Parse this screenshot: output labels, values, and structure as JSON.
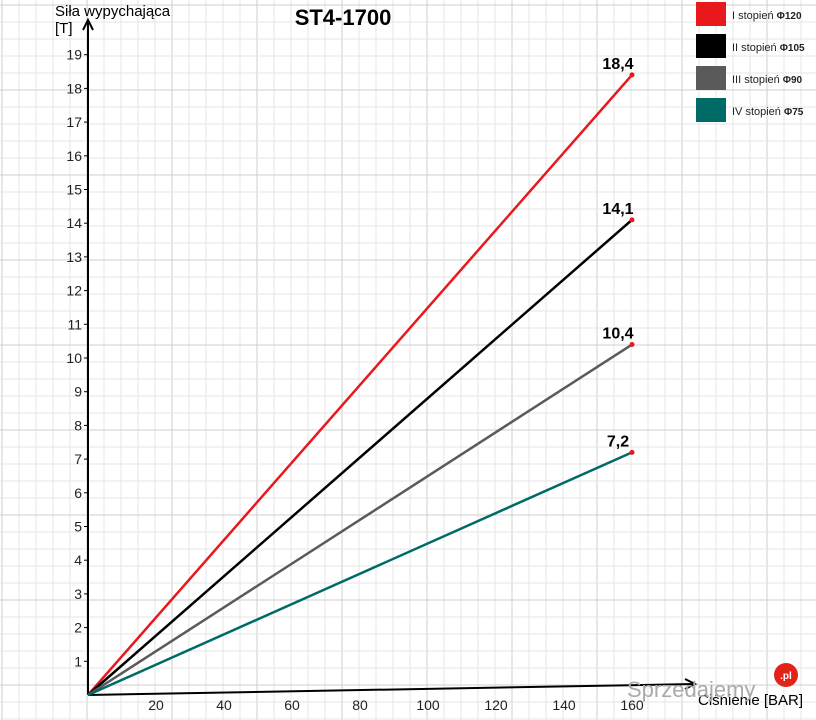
{
  "chart_data": {
    "type": "line",
    "title": "ST4-1700",
    "ylabel_line1": "Siła wypychająca",
    "ylabel_line2": "[T]",
    "xlabel": "Ciśnienie [BAR]",
    "x_ticks": [
      20,
      40,
      60,
      80,
      100,
      120,
      140,
      160
    ],
    "y_ticks": [
      1,
      2,
      3,
      4,
      5,
      6,
      7,
      8,
      9,
      10,
      11,
      12,
      13,
      14,
      15,
      16,
      17,
      18,
      19
    ],
    "xlim": [
      0,
      160
    ],
    "ylim": [
      0,
      19
    ],
    "grid": true,
    "legend_position": "top-right",
    "series": [
      {
        "name": "I stopień",
        "size": "Φ120",
        "color": "#e8181c",
        "points": [
          [
            0,
            0
          ],
          [
            160,
            18.4
          ]
        ],
        "end_label": "18,4"
      },
      {
        "name": "II stopień",
        "size": "Φ105",
        "color": "#000000",
        "points": [
          [
            0,
            0
          ],
          [
            160,
            14.1
          ]
        ],
        "end_label": "14,1"
      },
      {
        "name": "III stopień",
        "size": "Φ90",
        "color": "#5a5a5a",
        "points": [
          [
            0,
            0
          ],
          [
            160,
            10.4
          ]
        ],
        "end_label": "10,4"
      },
      {
        "name": "IV stopień",
        "size": "Φ75",
        "color": "#006b66",
        "points": [
          [
            0,
            0
          ],
          [
            160,
            7.2
          ]
        ],
        "end_label": "7,2"
      }
    ]
  },
  "watermark": {
    "text": "Sprzedajemy",
    "badge": ".pl",
    "badge_color": "#e2231a"
  }
}
